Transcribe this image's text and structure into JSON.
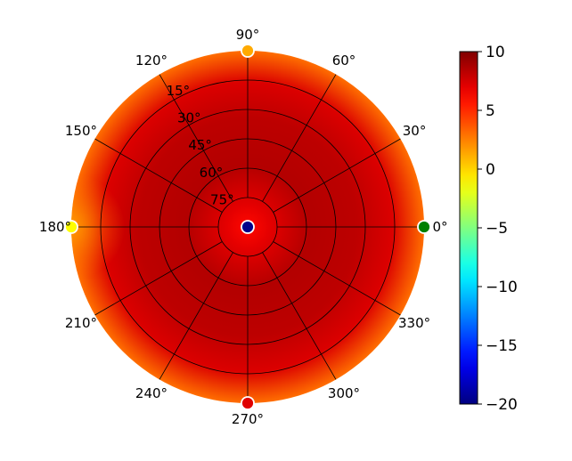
{
  "chart_data": {
    "type": "heatmap",
    "projection": "polar",
    "title": "",
    "angle_ticks": [
      "0°",
      "30°",
      "60°",
      "90°",
      "120°",
      "150°",
      "180°",
      "210°",
      "240°",
      "270°",
      "300°",
      "330°"
    ],
    "radial_ticks": [
      "15°",
      "30°",
      "45°",
      "60°",
      "75°"
    ],
    "radial_range_deg": [
      0,
      90
    ],
    "grid": true,
    "colormap": "jet",
    "colorbar": {
      "position": "right",
      "range": [
        -20,
        10
      ],
      "ticks": [
        "10",
        "5",
        "0",
        "−5",
        "−10",
        "−15",
        "−20"
      ]
    },
    "field": {
      "zenith_value": 6,
      "mid_value": 8.5,
      "edge_value": 3,
      "edge_value_at_180": 1.5,
      "description_values_are_data": true
    },
    "markers": [
      {
        "azimuth_deg": 0,
        "elevation_deg": 0,
        "color": "#008000"
      },
      {
        "azimuth_deg": 90,
        "elevation_deg": 0,
        "color": "#ffaa00"
      },
      {
        "azimuth_deg": 180,
        "elevation_deg": 0,
        "color": "#ffff00"
      },
      {
        "azimuth_deg": 270,
        "elevation_deg": 0,
        "color": "#e00000"
      },
      {
        "azimuth_deg": 0,
        "elevation_deg": 90,
        "color": "#00008b"
      }
    ]
  }
}
